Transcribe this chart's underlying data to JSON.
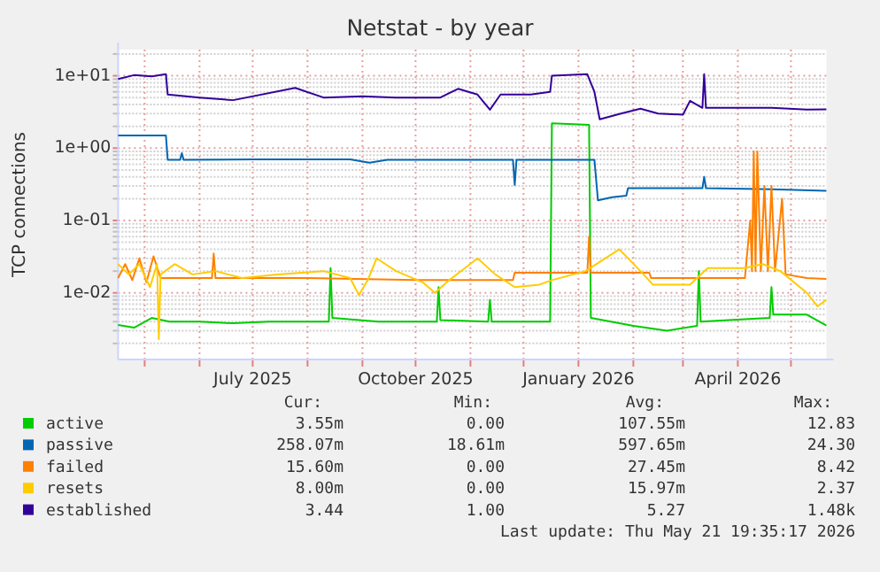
{
  "chart_data": {
    "type": "line",
    "title": "Netstat - by year",
    "ylabel": "TCP connections",
    "log": true,
    "grid": true,
    "legend": "bottom",
    "ylim": [
      0.0012,
      23
    ],
    "yticks": [
      {
        "value": 0.002,
        "label": null
      },
      {
        "value": 0.003,
        "label": null
      },
      {
        "value": 0.004,
        "label": null
      },
      {
        "value": 0.005,
        "label": null
      },
      {
        "value": 0.006,
        "label": null
      },
      {
        "value": 0.007,
        "label": null
      },
      {
        "value": 0.008,
        "label": null
      },
      {
        "value": 0.009,
        "label": null
      },
      {
        "value": 0.01,
        "label": "1e-02"
      },
      {
        "value": 0.02,
        "label": null
      },
      {
        "value": 0.03,
        "label": null
      },
      {
        "value": 0.04,
        "label": null
      },
      {
        "value": 0.05,
        "label": null
      },
      {
        "value": 0.06,
        "label": null
      },
      {
        "value": 0.07,
        "label": null
      },
      {
        "value": 0.08,
        "label": null
      },
      {
        "value": 0.09,
        "label": null
      },
      {
        "value": 0.1,
        "label": "1e-01"
      },
      {
        "value": 0.2,
        "label": null
      },
      {
        "value": 0.3,
        "label": null
      },
      {
        "value": 0.4,
        "label": null
      },
      {
        "value": 0.5,
        "label": null
      },
      {
        "value": 0.6,
        "label": null
      },
      {
        "value": 0.7,
        "label": null
      },
      {
        "value": 0.8,
        "label": null
      },
      {
        "value": 0.9,
        "label": null
      },
      {
        "value": 1,
        "label": "1e+00"
      },
      {
        "value": 2,
        "label": null
      },
      {
        "value": 3,
        "label": null
      },
      {
        "value": 4,
        "label": null
      },
      {
        "value": 5,
        "label": null
      },
      {
        "value": 6,
        "label": null
      },
      {
        "value": 7,
        "label": null
      },
      {
        "value": 8,
        "label": null
      },
      {
        "value": 9,
        "label": null
      },
      {
        "value": 10,
        "label": "1e+01"
      },
      {
        "value": 20,
        "label": null
      }
    ],
    "xlim": [
      "2025-04-16",
      "2026-05-21"
    ],
    "xticks": [
      {
        "value": "2025-05-01",
        "label": null
      },
      {
        "value": "2025-06-01",
        "label": null
      },
      {
        "value": "2025-07-01",
        "label": "July 2025"
      },
      {
        "value": "2025-08-01",
        "label": null
      },
      {
        "value": "2025-09-01",
        "label": null
      },
      {
        "value": "2025-10-01",
        "label": "October 2025"
      },
      {
        "value": "2025-11-01",
        "label": null
      },
      {
        "value": "2025-12-01",
        "label": null
      },
      {
        "value": "2026-01-01",
        "label": "January 2026"
      },
      {
        "value": "2026-02-01",
        "label": null
      },
      {
        "value": "2026-03-01",
        "label": null
      },
      {
        "value": "2026-04-01",
        "label": "April 2026"
      },
      {
        "value": "2026-05-01",
        "label": null
      }
    ],
    "series": [
      {
        "name": "active",
        "color": "#00cc00",
        "x": [
          "2025-04-16",
          "2025-04-25",
          "2025-05-05",
          "2025-05-15",
          "2025-06-01",
          "2025-06-20",
          "2025-07-10",
          "2025-08-13",
          "2025-08-14",
          "2025-08-15",
          "2025-09-10",
          "2025-10-13",
          "2025-10-14",
          "2025-10-15",
          "2025-11-11",
          "2025-11-12",
          "2025-11-13",
          "2025-12-16",
          "2025-12-17",
          "2026-01-07",
          "2026-01-08",
          "2026-02-01",
          "2026-02-20",
          "2026-03-09",
          "2026-03-10",
          "2026-03-11",
          "2026-04-19",
          "2026-04-20",
          "2026-04-21",
          "2026-05-10",
          "2026-05-21"
        ],
        "values": [
          0.0036,
          0.0033,
          0.0045,
          0.004,
          0.004,
          0.0038,
          0.004,
          0.004,
          0.022,
          0.0045,
          0.004,
          0.004,
          0.012,
          0.0042,
          0.004,
          0.008,
          0.004,
          0.004,
          2.2,
          2.1,
          0.0045,
          0.0035,
          0.003,
          0.0035,
          0.02,
          0.004,
          0.0045,
          0.012,
          0.005,
          0.005,
          0.00355
        ]
      },
      {
        "name": "passive",
        "color": "#0066b3",
        "x": [
          "2025-04-16",
          "2025-05-13",
          "2025-05-14",
          "2025-05-21",
          "2025-05-22",
          "2025-05-23",
          "2025-07-01",
          "2025-08-25",
          "2025-09-05",
          "2025-09-15",
          "2025-10-15",
          "2025-11-25",
          "2025-11-26",
          "2025-11-27",
          "2026-01-10",
          "2026-01-12",
          "2026-01-20",
          "2026-01-28",
          "2026-01-29",
          "2026-03-12",
          "2026-03-13",
          "2026-03-14",
          "2026-04-20",
          "2026-05-21"
        ],
        "values": [
          1.5,
          1.5,
          0.69,
          0.69,
          0.85,
          0.69,
          0.7,
          0.7,
          0.63,
          0.69,
          0.69,
          0.69,
          0.31,
          0.69,
          0.69,
          0.19,
          0.21,
          0.22,
          0.28,
          0.28,
          0.4,
          0.28,
          0.27,
          0.258
        ]
      },
      {
        "name": "failed",
        "color": "#ff8000",
        "x": [
          "2025-04-16",
          "2025-04-20",
          "2025-04-24",
          "2025-04-28",
          "2025-05-02",
          "2025-05-06",
          "2025-05-10",
          "2025-05-20",
          "2025-06-08",
          "2025-06-09",
          "2025-06-10",
          "2025-08-01",
          "2025-10-01",
          "2025-11-25",
          "2025-11-26",
          "2026-01-06",
          "2026-01-07",
          "2026-01-08",
          "2026-02-10",
          "2026-02-11",
          "2026-04-05",
          "2026-04-08",
          "2026-04-09",
          "2026-04-10",
          "2026-04-11",
          "2026-04-12",
          "2026-04-14",
          "2026-04-16",
          "2026-04-18",
          "2026-04-20",
          "2026-04-22",
          "2026-04-26",
          "2026-04-28",
          "2026-05-10",
          "2026-05-21"
        ],
        "values": [
          0.016,
          0.025,
          0.015,
          0.03,
          0.014,
          0.032,
          0.016,
          0.016,
          0.016,
          0.035,
          0.016,
          0.016,
          0.015,
          0.015,
          0.019,
          0.019,
          0.06,
          0.019,
          0.019,
          0.016,
          0.016,
          0.1,
          0.02,
          0.9,
          0.02,
          0.9,
          0.02,
          0.3,
          0.02,
          0.3,
          0.02,
          0.2,
          0.018,
          0.016,
          0.0156
        ]
      },
      {
        "name": "resets",
        "color": "#ffcc00",
        "x": [
          "2025-04-16",
          "2025-04-22",
          "2025-04-28",
          "2025-05-04",
          "2025-05-08",
          "2025-05-09",
          "2025-05-10",
          "2025-05-18",
          "2025-05-28",
          "2025-06-10",
          "2025-06-25",
          "2025-07-15",
          "2025-08-10",
          "2025-08-25",
          "2025-08-30",
          "2025-09-04",
          "2025-09-09",
          "2025-09-20",
          "2025-10-05",
          "2025-10-12",
          "2025-10-20",
          "2025-11-05",
          "2025-11-15",
          "2025-11-26",
          "2025-12-10",
          "2025-12-17",
          "2026-01-05",
          "2026-01-24",
          "2026-02-05",
          "2026-02-12",
          "2026-03-05",
          "2026-03-15",
          "2026-04-05",
          "2026-04-15",
          "2026-04-25",
          "2026-05-10",
          "2026-05-16",
          "2026-05-21"
        ],
        "values": [
          0.025,
          0.018,
          0.025,
          0.012,
          0.025,
          0.0023,
          0.018,
          0.025,
          0.018,
          0.02,
          0.016,
          0.018,
          0.02,
          0.016,
          0.0093,
          0.015,
          0.03,
          0.02,
          0.014,
          0.01,
          0.015,
          0.03,
          0.018,
          0.012,
          0.013,
          0.015,
          0.02,
          0.04,
          0.02,
          0.013,
          0.013,
          0.022,
          0.022,
          0.025,
          0.02,
          0.01,
          0.0065,
          0.008
        ]
      },
      {
        "name": "established",
        "color": "#330099",
        "x": [
          "2025-04-16",
          "2025-04-25",
          "2025-05-05",
          "2025-05-13",
          "2025-05-14",
          "2025-06-01",
          "2025-06-20",
          "2025-07-25",
          "2025-08-10",
          "2025-09-01",
          "2025-09-20",
          "2025-10-15",
          "2025-10-25",
          "2025-11-05",
          "2025-11-12",
          "2025-11-18",
          "2025-12-05",
          "2025-12-16",
          "2025-12-17",
          "2026-01-06",
          "2026-01-10",
          "2026-01-13",
          "2026-01-25",
          "2026-02-05",
          "2026-02-15",
          "2026-03-01",
          "2026-03-05",
          "2026-03-12",
          "2026-03-13",
          "2026-03-14",
          "2026-04-20",
          "2026-05-10",
          "2026-05-21"
        ],
        "values": [
          9,
          10.2,
          9.8,
          10.5,
          5.5,
          5,
          4.6,
          6.8,
          5,
          5.2,
          5,
          5,
          6.6,
          5.5,
          3.4,
          5.5,
          5.5,
          6,
          10,
          10.5,
          6,
          2.5,
          3,
          3.5,
          3,
          2.9,
          4.5,
          3.6,
          10.5,
          3.6,
          3.6,
          3.4,
          3.44
        ]
      }
    ],
    "annotations": [
      "Cur:",
      "Min:",
      "Avg:",
      "Max:",
      "3.55m",
      "0.00",
      "107.55m",
      "12.83",
      "258.07m",
      "18.61m",
      "597.65m",
      "24.30",
      "15.60m",
      "0.00",
      "27.45m",
      "8.42",
      "8.00m",
      "0.00",
      "15.97m",
      "2.37",
      "3.44",
      "1.00",
      "5.27",
      "1.48k",
      "Last update: Thu May 21 19:35:17 2026"
    ]
  }
}
